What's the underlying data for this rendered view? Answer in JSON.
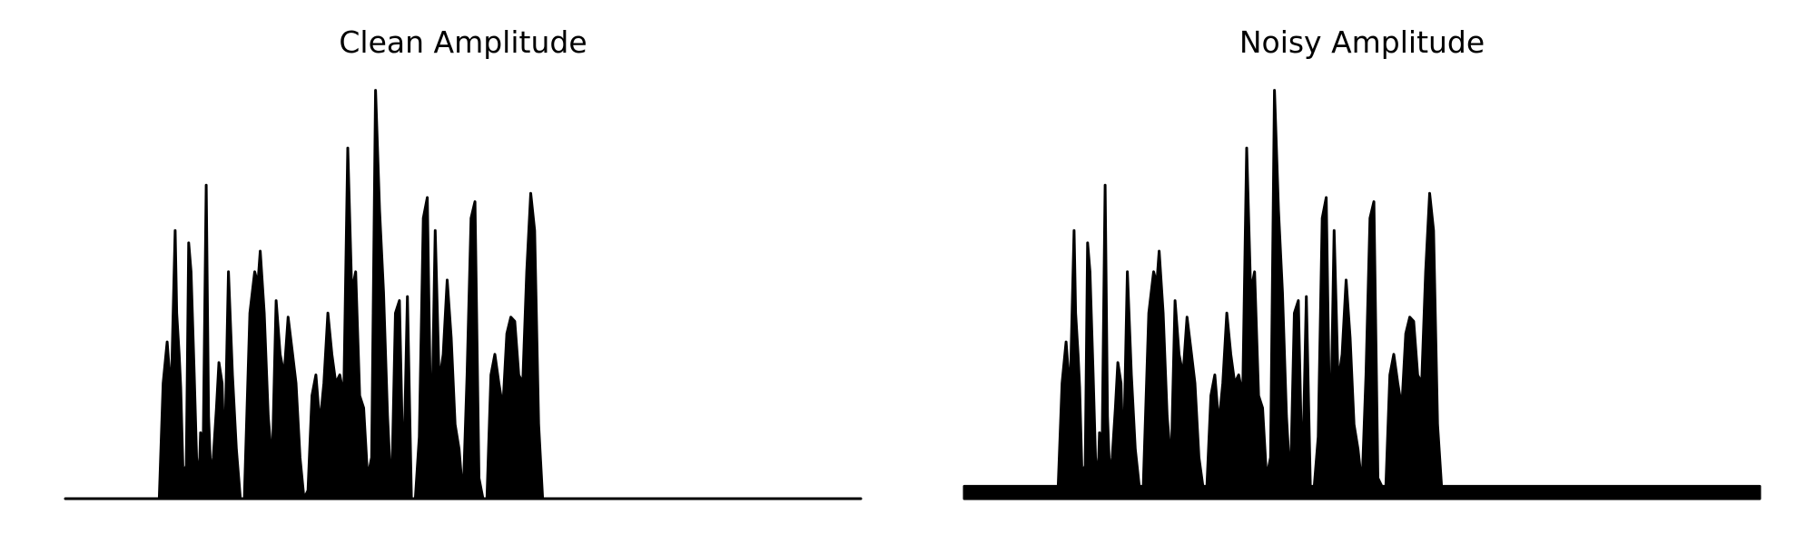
{
  "figure": {
    "background": "#ffffff",
    "panels": [
      {
        "title": "Clean Amplitude"
      },
      {
        "title": "Noisy Amplitude"
      }
    ]
  },
  "chart_data": [
    {
      "type": "line",
      "title": "Clean Amplitude",
      "xlabel": "",
      "ylabel": "",
      "axes_visible": false,
      "grid": false,
      "line_color": "#000000",
      "xlim": [
        0,
        1
      ],
      "ylim": [
        0,
        1
      ],
      "noise_floor": 0.0,
      "x": [
        0.0,
        0.1,
        0.118,
        0.123,
        0.128,
        0.133,
        0.138,
        0.14,
        0.143,
        0.145,
        0.148,
        0.152,
        0.155,
        0.158,
        0.162,
        0.165,
        0.168,
        0.17,
        0.173,
        0.177,
        0.18,
        0.183,
        0.186,
        0.19,
        0.193,
        0.197,
        0.2,
        0.205,
        0.21,
        0.215,
        0.22,
        0.225,
        0.232,
        0.238,
        0.242,
        0.245,
        0.25,
        0.255,
        0.26,
        0.265,
        0.27,
        0.275,
        0.28,
        0.285,
        0.29,
        0.295,
        0.3,
        0.305,
        0.31,
        0.315,
        0.32,
        0.325,
        0.33,
        0.335,
        0.34,
        0.345,
        0.35,
        0.355,
        0.36,
        0.365,
        0.37,
        0.375,
        0.38,
        0.385,
        0.39,
        0.395,
        0.4,
        0.405,
        0.41,
        0.415,
        0.42,
        0.425,
        0.43,
        0.435,
        0.44,
        0.445,
        0.45,
        0.455,
        0.46,
        0.465,
        0.47,
        0.475,
        0.48,
        0.485,
        0.49,
        0.495,
        0.5,
        0.505,
        0.51,
        0.515,
        0.52,
        0.525,
        0.53,
        0.535,
        0.54,
        0.545,
        0.55,
        0.555,
        0.56,
        0.565,
        0.57,
        0.575,
        0.58,
        0.585,
        0.59,
        0.595,
        0.6,
        0.605,
        0.61,
        0.615,
        0.62,
        0.625,
        0.63,
        0.635,
        0.64,
        0.645,
        0.65,
        0.655,
        0.66,
        0.665,
        0.67,
        0.675,
        0.68,
        0.685,
        0.69,
        0.695,
        0.7,
        0.72,
        0.8,
        0.9,
        0.97,
        1.0
      ],
      "y": [
        0.0,
        0.0,
        0.0,
        0.28,
        0.38,
        0.25,
        0.65,
        0.45,
        0.35,
        0.27,
        0.06,
        0.08,
        0.62,
        0.55,
        0.3,
        0.1,
        0.04,
        0.16,
        0.07,
        0.76,
        0.2,
        0.05,
        0.1,
        0.22,
        0.33,
        0.28,
        0.08,
        0.55,
        0.3,
        0.12,
        0.0,
        0.0,
        0.45,
        0.55,
        0.52,
        0.6,
        0.45,
        0.2,
        0.08,
        0.48,
        0.35,
        0.3,
        0.44,
        0.36,
        0.28,
        0.1,
        0.0,
        0.02,
        0.25,
        0.3,
        0.18,
        0.28,
        0.45,
        0.35,
        0.28,
        0.3,
        0.25,
        0.85,
        0.5,
        0.55,
        0.25,
        0.22,
        0.05,
        0.1,
        0.99,
        0.7,
        0.5,
        0.2,
        0.0,
        0.45,
        0.48,
        0.03,
        0.49,
        0.0,
        0.0,
        0.15,
        0.68,
        0.73,
        0.1,
        0.65,
        0.28,
        0.35,
        0.53,
        0.39,
        0.18,
        0.12,
        0.0,
        0.3,
        0.68,
        0.72,
        0.05,
        0.0,
        0.0,
        0.3,
        0.35,
        0.28,
        0.22,
        0.4,
        0.44,
        0.43,
        0.3,
        0.28,
        0.55,
        0.74,
        0.65,
        0.18,
        0.0,
        0.0,
        0.0,
        0.0,
        0.0,
        0.0,
        0.0,
        0.0,
        0.0,
        0.0,
        0.0,
        0.0,
        0.0,
        0.0,
        0.0,
        0.0,
        0.0,
        0.0,
        0.0,
        0.0,
        0.0,
        0.0,
        0.0,
        0.0,
        0.0,
        0.0
      ]
    },
    {
      "type": "line",
      "title": "Noisy Amplitude",
      "xlabel": "",
      "ylabel": "",
      "axes_visible": false,
      "grid": false,
      "line_color": "#000000",
      "xlim": [
        0,
        1
      ],
      "ylim": [
        0,
        1
      ],
      "noise_floor": 0.03,
      "noise_floor_range": [
        0.01,
        0.91
      ],
      "x": [
        0.0,
        0.1,
        0.118,
        0.123,
        0.128,
        0.133,
        0.138,
        0.14,
        0.143,
        0.145,
        0.148,
        0.152,
        0.155,
        0.158,
        0.162,
        0.165,
        0.168,
        0.17,
        0.173,
        0.177,
        0.18,
        0.183,
        0.186,
        0.19,
        0.193,
        0.197,
        0.2,
        0.205,
        0.21,
        0.215,
        0.22,
        0.225,
        0.232,
        0.238,
        0.242,
        0.245,
        0.25,
        0.255,
        0.26,
        0.265,
        0.27,
        0.275,
        0.28,
        0.285,
        0.29,
        0.295,
        0.3,
        0.305,
        0.31,
        0.315,
        0.32,
        0.325,
        0.33,
        0.335,
        0.34,
        0.345,
        0.35,
        0.355,
        0.36,
        0.365,
        0.37,
        0.375,
        0.38,
        0.385,
        0.39,
        0.395,
        0.4,
        0.405,
        0.41,
        0.415,
        0.42,
        0.425,
        0.43,
        0.435,
        0.44,
        0.445,
        0.45,
        0.455,
        0.46,
        0.465,
        0.47,
        0.475,
        0.48,
        0.485,
        0.49,
        0.495,
        0.5,
        0.505,
        0.51,
        0.515,
        0.52,
        0.525,
        0.53,
        0.535,
        0.54,
        0.545,
        0.55,
        0.555,
        0.56,
        0.565,
        0.57,
        0.575,
        0.58,
        0.585,
        0.59,
        0.595,
        0.6,
        0.605,
        0.61,
        0.615,
        0.62,
        0.625,
        0.63,
        0.635,
        0.64,
        0.645,
        0.65,
        0.655,
        0.66,
        0.665,
        0.67,
        0.675,
        0.68,
        0.685,
        0.69,
        0.695,
        0.7,
        0.72,
        0.8,
        0.9,
        0.97,
        1.0
      ],
      "y": [
        0.0,
        0.0,
        0.0,
        0.28,
        0.38,
        0.25,
        0.65,
        0.45,
        0.35,
        0.27,
        0.06,
        0.08,
        0.62,
        0.55,
        0.3,
        0.1,
        0.04,
        0.16,
        0.07,
        0.76,
        0.2,
        0.05,
        0.1,
        0.22,
        0.33,
        0.28,
        0.08,
        0.55,
        0.3,
        0.12,
        0.0,
        0.0,
        0.45,
        0.55,
        0.52,
        0.6,
        0.45,
        0.2,
        0.08,
        0.48,
        0.35,
        0.3,
        0.44,
        0.36,
        0.28,
        0.1,
        0.0,
        0.02,
        0.25,
        0.3,
        0.18,
        0.28,
        0.45,
        0.35,
        0.28,
        0.3,
        0.25,
        0.85,
        0.5,
        0.55,
        0.25,
        0.22,
        0.05,
        0.1,
        0.99,
        0.7,
        0.5,
        0.2,
        0.0,
        0.45,
        0.48,
        0.03,
        0.49,
        0.0,
        0.0,
        0.15,
        0.68,
        0.73,
        0.1,
        0.65,
        0.28,
        0.35,
        0.53,
        0.39,
        0.18,
        0.12,
        0.0,
        0.3,
        0.68,
        0.72,
        0.05,
        0.0,
        0.0,
        0.3,
        0.35,
        0.28,
        0.22,
        0.4,
        0.44,
        0.43,
        0.3,
        0.28,
        0.55,
        0.74,
        0.65,
        0.18,
        0.0,
        0.0,
        0.0,
        0.0,
        0.0,
        0.0,
        0.0,
        0.0,
        0.0,
        0.0,
        0.0,
        0.0,
        0.0,
        0.0,
        0.0,
        0.0,
        0.0,
        0.0,
        0.0,
        0.0,
        0.0,
        0.0,
        0.0,
        0.0,
        0.0,
        0.0
      ]
    }
  ]
}
